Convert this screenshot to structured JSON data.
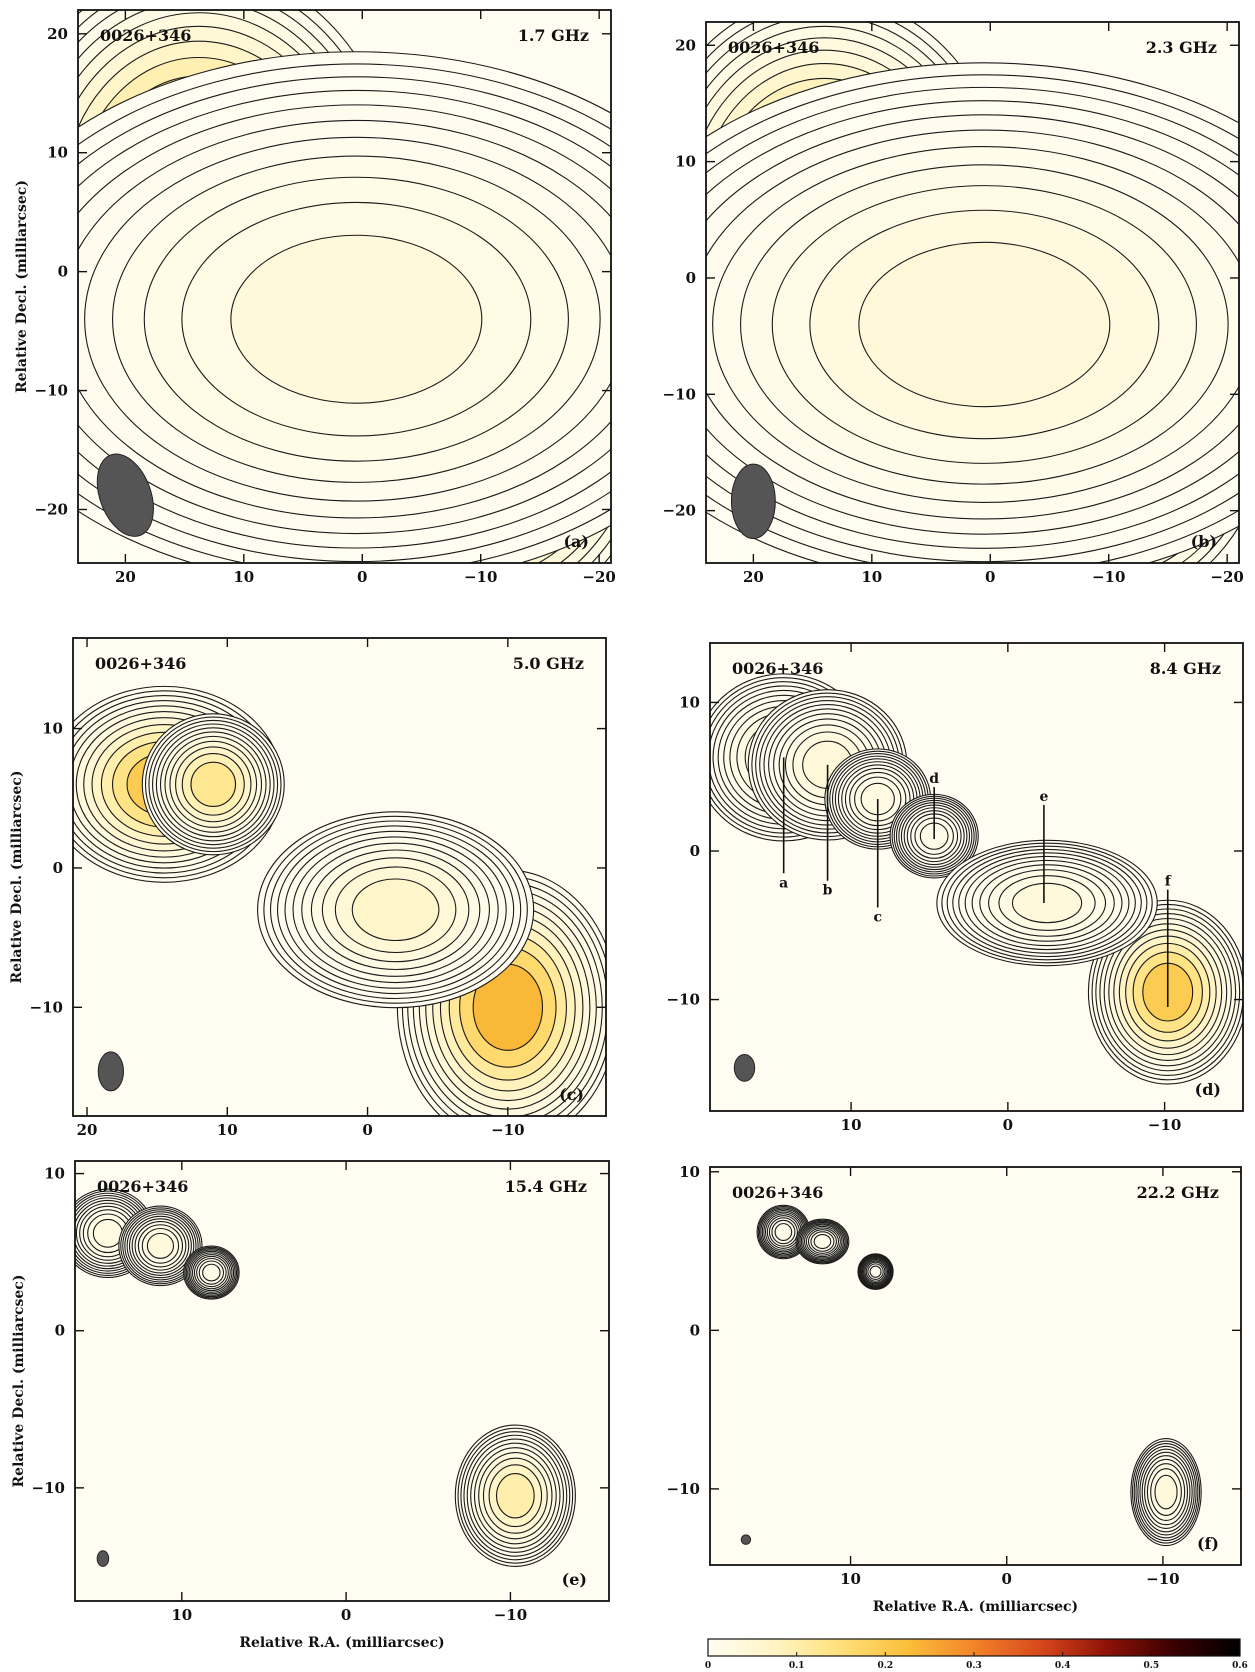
{
  "chart_data": [
    {
      "type": "heatmap",
      "source": "0026+346",
      "frequency": "1.7 GHz",
      "panel_label": "(a)",
      "xlabel": "",
      "ylabel": "Relative Decl. (milliarcsec)",
      "xlim": [
        24,
        -21
      ],
      "ylim": [
        -24.5,
        22
      ],
      "xticks": [
        "20",
        "10",
        "0",
        "−10",
        "−20"
      ],
      "yticks": [
        "20",
        "10",
        "0",
        "−10",
        "−20"
      ],
      "components": [
        {
          "x": 13.8,
          "y": 6.0,
          "peak": 0.38,
          "sx": 6.0,
          "sy": 7.0
        },
        {
          "x": -10.0,
          "y": -10.0,
          "peak": 0.6,
          "sx": 5.5,
          "sy": 7.0
        },
        {
          "x": 0.5,
          "y": -4.0,
          "peak": 0.05,
          "sx": 12.0,
          "sy": 8.0
        }
      ],
      "beam": {
        "x": 20.0,
        "y": -18.8,
        "major": 7.2,
        "minor": 4.3,
        "pa": -20
      }
    },
    {
      "type": "heatmap",
      "source": "0026+346",
      "frequency": "2.3 GHz",
      "panel_label": "(b)",
      "xlabel": "",
      "ylabel": "",
      "xlim": [
        24,
        -21
      ],
      "ylim": [
        -24.5,
        22
      ],
      "xticks": [
        "20",
        "10",
        "0",
        "−10",
        "−20"
      ],
      "yticks": [
        "20",
        "10",
        "0",
        "−10",
        "−20"
      ],
      "components": [
        {
          "x": 14.0,
          "y": 6.0,
          "peak": 0.33,
          "sx": 5.5,
          "sy": 6.5
        },
        {
          "x": -10.0,
          "y": -10.0,
          "peak": 0.6,
          "sx": 5.0,
          "sy": 6.5
        },
        {
          "x": 0.5,
          "y": -4.0,
          "peak": 0.06,
          "sx": 12.0,
          "sy": 8.0
        }
      ],
      "beam": {
        "x": 20.0,
        "y": -19.2,
        "major": 6.4,
        "minor": 3.7,
        "pa": 0
      }
    },
    {
      "type": "heatmap",
      "source": "0026+346",
      "frequency": "5.0 GHz",
      "panel_label": "(c)",
      "xlabel": "",
      "ylabel": "Relative Decl. (milliarcsec)",
      "xlim": [
        21,
        -17
      ],
      "ylim": [
        -17.8,
        16.5
      ],
      "xticks": [
        "20",
        "10",
        "0",
        "−10"
      ],
      "yticks": [
        "10",
        "0",
        "−10"
      ],
      "components": [
        {
          "x": 14.5,
          "y": 6.0,
          "peak": 0.28,
          "sx": 3.0,
          "sy": 2.5
        },
        {
          "x": 11.0,
          "y": 6.0,
          "peak": 0.18,
          "sx": 1.8,
          "sy": 1.8
        },
        {
          "x": -10.0,
          "y": -10.0,
          "peak": 0.33,
          "sx": 2.8,
          "sy": 3.5
        },
        {
          "x": -2.0,
          "y": -3.0,
          "peak": 0.09,
          "sx": 3.5,
          "sy": 2.5
        }
      ],
      "beam": {
        "x": 18.3,
        "y": -14.6,
        "major": 2.8,
        "minor": 1.8,
        "pa": 0
      }
    },
    {
      "type": "heatmap",
      "source": "0026+346",
      "frequency": "8.4 GHz",
      "panel_label": "(d)",
      "xlabel": "",
      "ylabel": "",
      "xlim": [
        19,
        -15
      ],
      "ylim": [
        -17.5,
        14
      ],
      "xticks": [
        "10",
        "0",
        "−10"
      ],
      "yticks": [
        "10",
        "0",
        "−10"
      ],
      "components": [
        {
          "x": 14.3,
          "y": 6.3,
          "peak": 0.07,
          "sx": 2.0,
          "sy": 2.0
        },
        {
          "x": 11.5,
          "y": 5.8,
          "peak": 0.06,
          "sx": 1.8,
          "sy": 1.8
        },
        {
          "x": 8.3,
          "y": 3.5,
          "peak": 0.04,
          "sx": 1.2,
          "sy": 1.2
        },
        {
          "x": 4.7,
          "y": 1.0,
          "peak": 0.02,
          "sx": 1.0,
          "sy": 1.0
        },
        {
          "x": -10.2,
          "y": -9.5,
          "peak": 0.28,
          "sx": 1.8,
          "sy": 2.2
        },
        {
          "x": -2.5,
          "y": -3.5,
          "peak": 0.05,
          "sx": 2.5,
          "sy": 1.5
        }
      ],
      "beam": {
        "x": 16.8,
        "y": -14.6,
        "major": 1.8,
        "minor": 1.3,
        "pa": 0
      },
      "annotations": [
        {
          "text": "a",
          "x": 14.3,
          "y_top": 6.3,
          "y_bottom": -1.5
        },
        {
          "text": "b",
          "x": 11.5,
          "y_top": 5.8,
          "y_bottom": -2.0
        },
        {
          "text": "c",
          "x": 8.3,
          "y_top": 3.5,
          "y_bottom": -3.8
        },
        {
          "text": "d",
          "x": 4.7,
          "y_top": 0.8,
          "y_bottom": 4.3
        },
        {
          "text": "e",
          "x": -2.3,
          "y_top": -3.5,
          "y_bottom": 3.1
        },
        {
          "text": "f",
          "x": -10.2,
          "y_top": -10.5,
          "y_bottom": -2.6
        }
      ]
    },
    {
      "type": "heatmap",
      "source": "0026+346",
      "frequency": "15.4 GHz",
      "panel_label": "(e)",
      "xlabel": "Relative R.A. (milliarcsec)",
      "ylabel": "Relative Decl. (milliarcsec)",
      "xlim": [
        16.5,
        -16
      ],
      "ylim": [
        -17.2,
        10.8
      ],
      "xticks": [
        "10",
        "0",
        "−10"
      ],
      "yticks": [
        "10",
        "0",
        "−10"
      ],
      "components": [
        {
          "x": 14.5,
          "y": 6.2,
          "peak": 0.04,
          "sx": 1.0,
          "sy": 1.0
        },
        {
          "x": 11.3,
          "y": 5.4,
          "peak": 0.05,
          "sx": 0.9,
          "sy": 0.9
        },
        {
          "x": 8.2,
          "y": 3.7,
          "peak": 0.03,
          "sx": 0.6,
          "sy": 0.6
        },
        {
          "x": -10.3,
          "y": -10.5,
          "peak": 0.14,
          "sx": 1.3,
          "sy": 1.6
        }
      ],
      "beam": {
        "x": 14.8,
        "y": -14.5,
        "major": 1.0,
        "minor": 0.7,
        "pa": 0
      }
    },
    {
      "type": "heatmap",
      "source": "0026+346",
      "frequency": "22.2 GHz",
      "panel_label": "(f)",
      "xlabel": "Relative R.A. (milliarcsec)",
      "ylabel": "",
      "xlim": [
        19,
        -15
      ],
      "ylim": [
        -14.8,
        10.3
      ],
      "xticks": [
        "10",
        "0",
        "−10"
      ],
      "yticks": [
        "10",
        "0",
        "−10"
      ],
      "components": [
        {
          "x": 14.3,
          "y": 6.2,
          "peak": 0.02,
          "sx": 0.6,
          "sy": 0.6
        },
        {
          "x": 11.8,
          "y": 5.6,
          "peak": 0.02,
          "sx": 0.6,
          "sy": 0.5
        },
        {
          "x": 8.4,
          "y": 3.7,
          "peak": 0.01,
          "sx": 0.4,
          "sy": 0.4
        },
        {
          "x": -10.2,
          "y": -10.2,
          "peak": 0.05,
          "sx": 0.8,
          "sy": 1.2
        }
      ],
      "beam": {
        "x": 16.7,
        "y": -13.2,
        "major": 0.6,
        "minor": 0.6,
        "pa": 0
      }
    }
  ],
  "colorbar": {
    "ticks": [
      "0",
      "0.1",
      "0.2",
      "0.3",
      "0.4",
      "0.5",
      "0.6"
    ],
    "range": [
      0,
      0.6
    ],
    "stops": [
      "#fffdf2",
      "#fff4c4",
      "#ffe07a",
      "#fbbf3a",
      "#f2842a",
      "#d8481c",
      "#8e1208",
      "#3a0000",
      "#000000"
    ]
  }
}
